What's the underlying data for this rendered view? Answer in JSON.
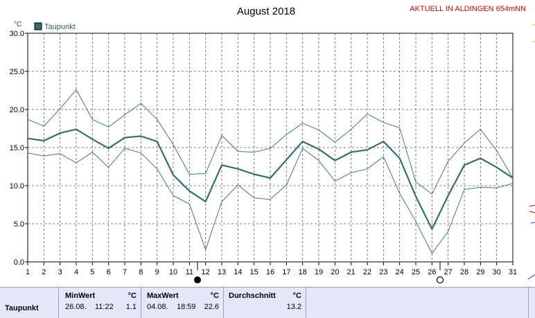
{
  "header": {
    "title": "August 2018",
    "station": "AKTUELL IN ALDINGEN 654mNN"
  },
  "chart_data": {
    "type": "line",
    "title": "August 2018",
    "ylabel": "°C",
    "xlabel": "",
    "ylim": [
      0,
      30
    ],
    "yticks": [
      "0.0",
      "5.0",
      "10.0",
      "15.0",
      "20.0",
      "25.0",
      "30.0"
    ],
    "x": [
      1,
      2,
      3,
      4,
      5,
      6,
      7,
      8,
      9,
      10,
      11,
      12,
      13,
      14,
      15,
      16,
      17,
      18,
      19,
      20,
      21,
      22,
      23,
      24,
      25,
      26,
      27,
      28,
      29,
      30,
      31
    ],
    "grid": true,
    "legend": "top-left",
    "series": [
      {
        "name": "Taupunkt",
        "role": "mean",
        "color": "#2f6f6f",
        "values": [
          16.2,
          15.9,
          16.9,
          17.4,
          16.1,
          14.9,
          16.3,
          16.5,
          15.8,
          11.4,
          9.3,
          7.9,
          12.7,
          12.2,
          11.5,
          11.0,
          13.4,
          15.8,
          14.8,
          13.3,
          14.4,
          14.7,
          15.8,
          13.6,
          8.6,
          4.3,
          8.7,
          12.7,
          13.6,
          12.4,
          11.0
        ]
      },
      {
        "role": "max",
        "color": "#3a7a7a",
        "values": [
          18.7,
          17.8,
          20.1,
          22.6,
          18.7,
          17.7,
          19.3,
          20.8,
          18.7,
          15.4,
          11.5,
          11.6,
          16.6,
          14.5,
          14.4,
          14.9,
          16.7,
          18.2,
          17.3,
          15.7,
          17.4,
          19.4,
          18.3,
          17.6,
          10.5,
          8.9,
          13.2,
          15.6,
          17.4,
          14.6,
          11.0
        ]
      },
      {
        "role": "min",
        "color": "#3a7a7a",
        "values": [
          14.3,
          13.9,
          14.2,
          13.0,
          14.4,
          12.4,
          14.9,
          14.3,
          12.2,
          8.7,
          7.6,
          1.6,
          7.9,
          10.1,
          8.4,
          8.2,
          10.1,
          14.9,
          13.3,
          10.6,
          11.7,
          12.2,
          13.8,
          9.0,
          5.3,
          1.1,
          4.0,
          9.5,
          9.8,
          9.7,
          10.3
        ]
      }
    ],
    "markers": [
      {
        "x": 11.5,
        "symbol": "full-moon"
      },
      {
        "x": 26.5,
        "symbol": "new-moon"
      }
    ]
  },
  "stats": {
    "row_label": "Taupunkt",
    "min": {
      "header": "MinWert",
      "unit": "°C",
      "date": "26.08.",
      "time": "11:22",
      "value": "1.1"
    },
    "max": {
      "header": "MaxWert",
      "unit": "°C",
      "date": "04.08.",
      "time": "18:59",
      "value": "22.6"
    },
    "avg": {
      "header": "Durchschnitt",
      "unit": "°C",
      "value": "13.2"
    }
  }
}
